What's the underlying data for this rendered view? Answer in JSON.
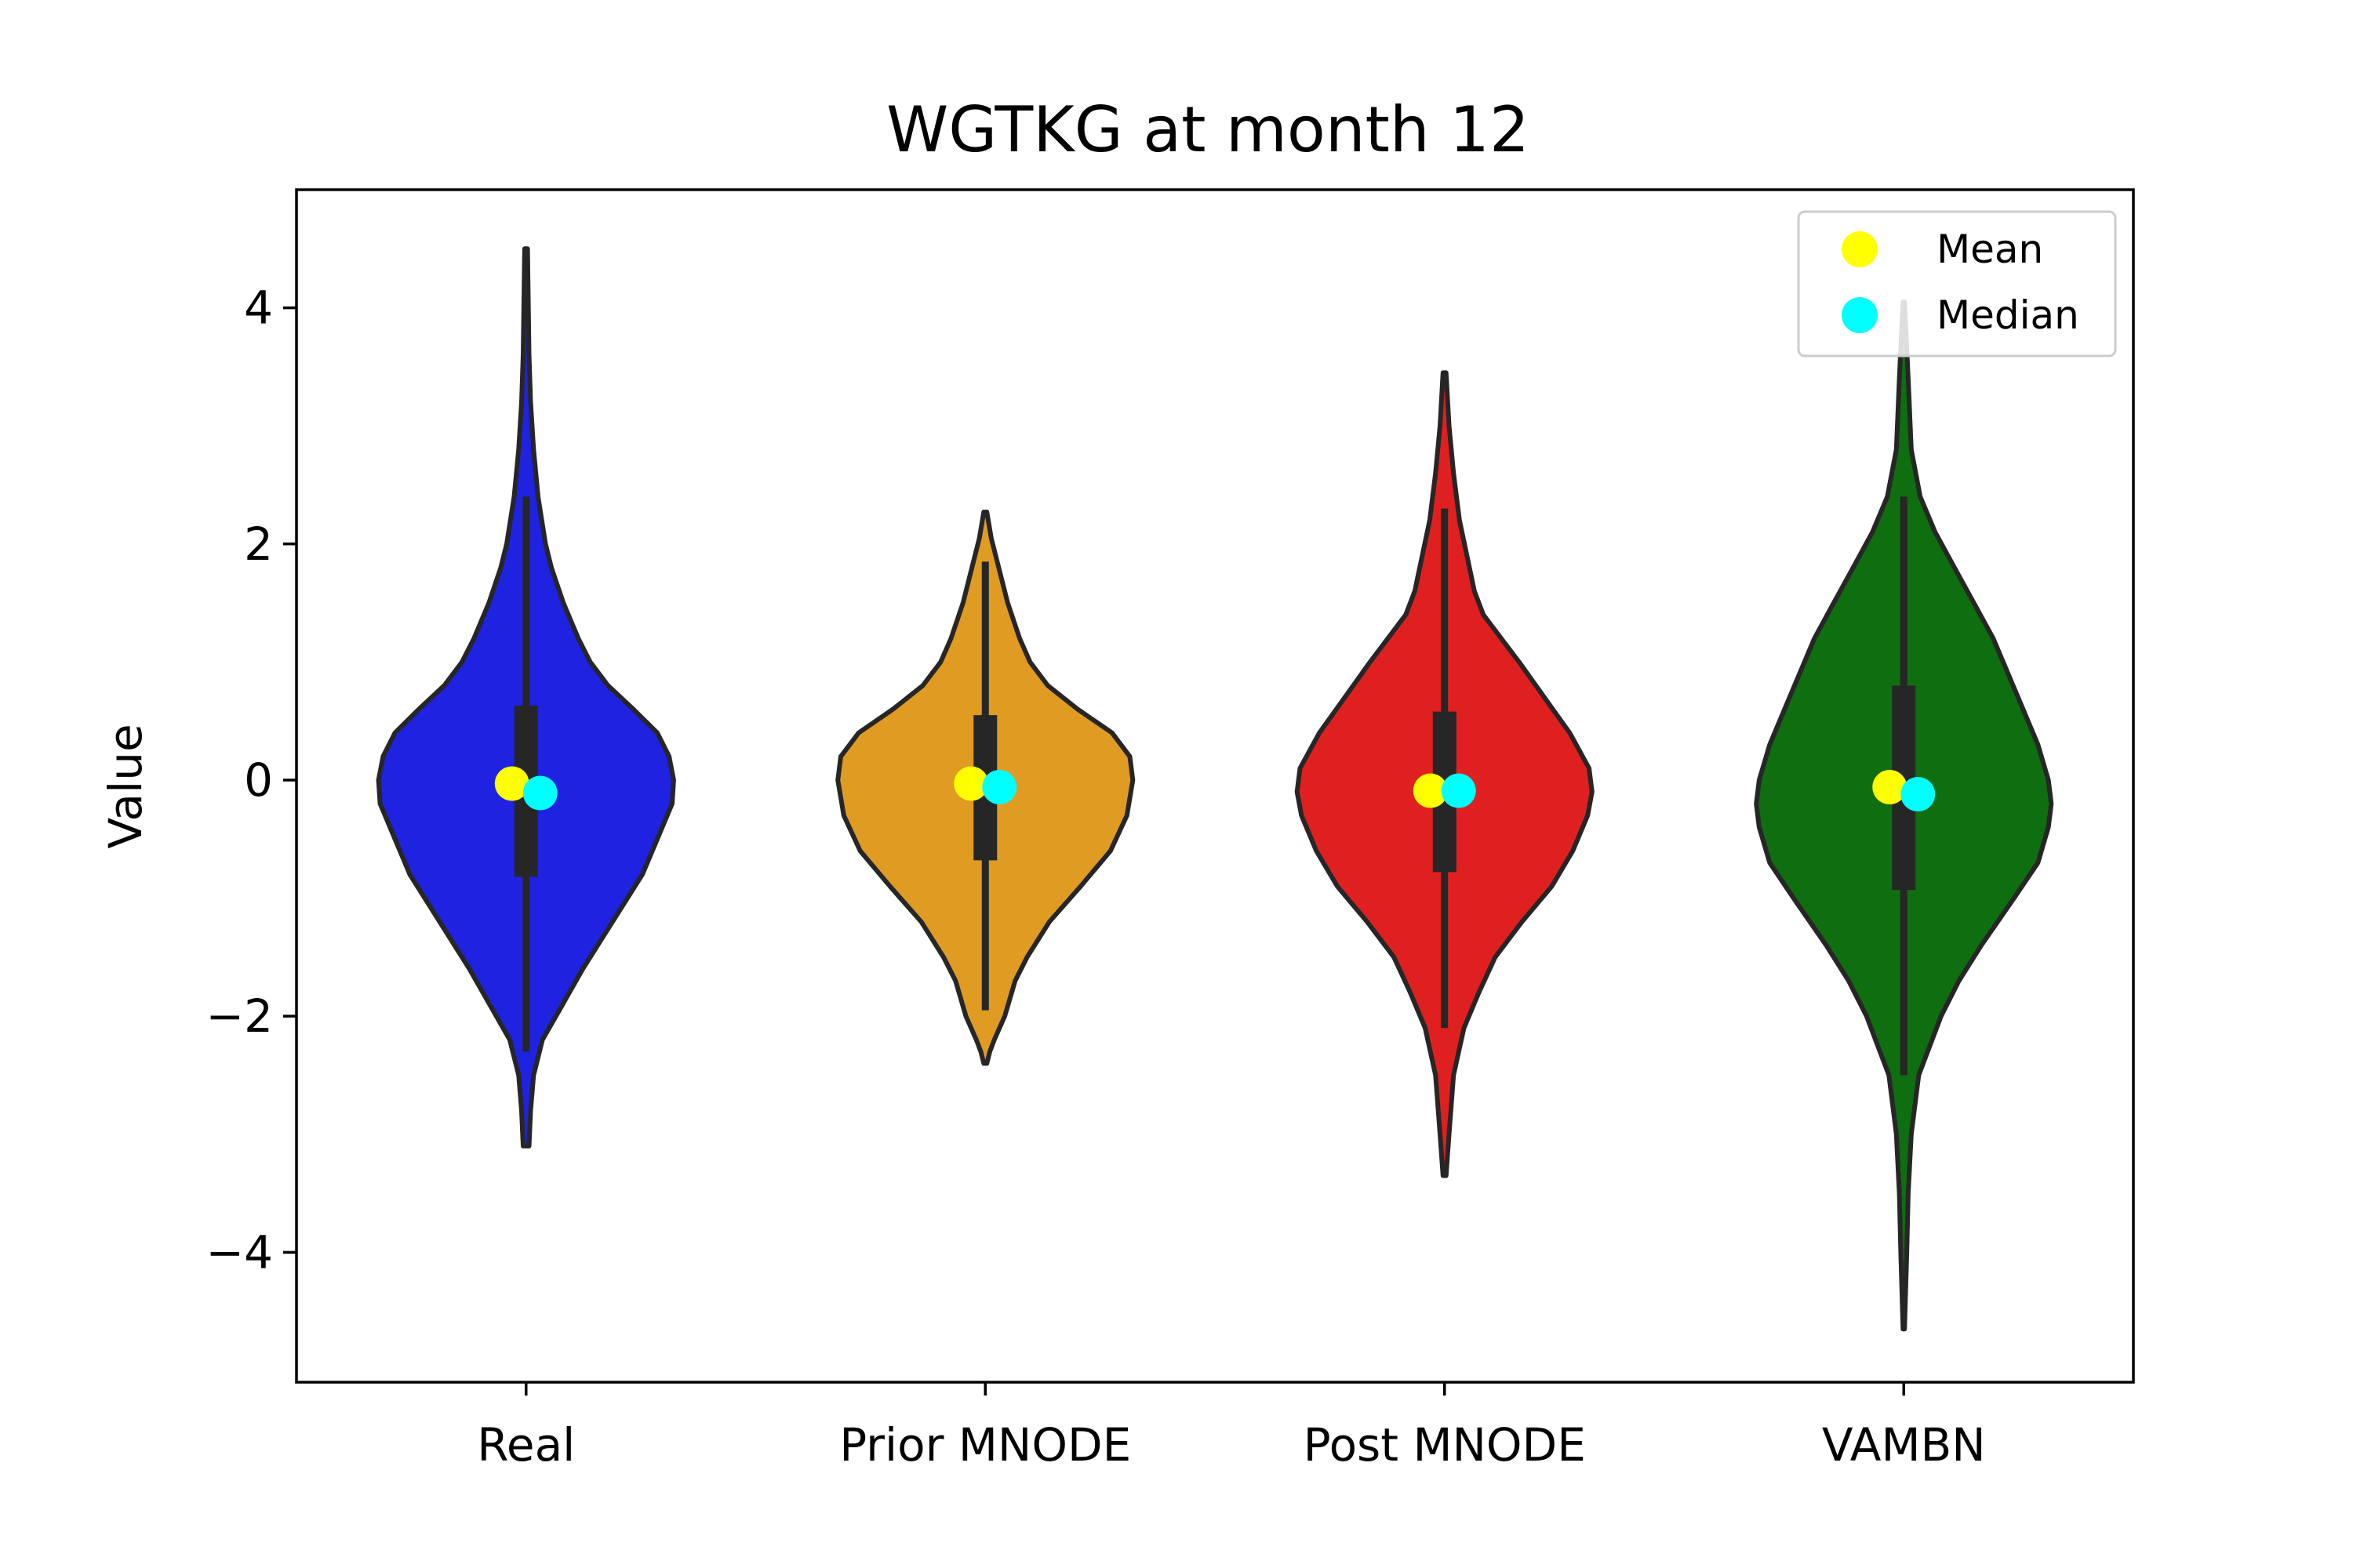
{
  "chart_data": {
    "type": "violin",
    "title": "WGTKG at month 12",
    "xlabel": "",
    "ylabel": "Value",
    "ylim": [
      -5.1,
      5.0
    ],
    "yticks": [
      4,
      2,
      0,
      -2,
      -4
    ],
    "ytick_labels": [
      "4",
      "2",
      "0",
      "−2",
      "−4"
    ],
    "legend": {
      "position": "top-right",
      "entries": [
        {
          "label": "Mean",
          "color": "#ffff00"
        },
        {
          "label": "Median",
          "color": "#00ffff"
        }
      ]
    },
    "series": [
      {
        "name": "Real",
        "color": "#1f22e0",
        "min": -3.1,
        "max": 4.5,
        "q1": -0.82,
        "q3": 0.63,
        "whisker_low": -2.3,
        "whisker_high": 2.4,
        "mean": -0.03,
        "median": -0.11,
        "density": [
          [
            -3.1,
            0.02
          ],
          [
            -2.8,
            0.03
          ],
          [
            -2.5,
            0.05
          ],
          [
            -2.2,
            0.11
          ],
          [
            -2.0,
            0.2
          ],
          [
            -1.6,
            0.38
          ],
          [
            -1.2,
            0.58
          ],
          [
            -0.8,
            0.78
          ],
          [
            -0.5,
            0.88
          ],
          [
            -0.2,
            0.98
          ],
          [
            0.0,
            0.99
          ],
          [
            0.2,
            0.96
          ],
          [
            0.4,
            0.88
          ],
          [
            0.6,
            0.72
          ],
          [
            0.8,
            0.55
          ],
          [
            1.0,
            0.43
          ],
          [
            1.2,
            0.35
          ],
          [
            1.5,
            0.25
          ],
          [
            1.8,
            0.17
          ],
          [
            2.0,
            0.13
          ],
          [
            2.4,
            0.08
          ],
          [
            2.8,
            0.05
          ],
          [
            3.2,
            0.03
          ],
          [
            3.6,
            0.02
          ],
          [
            4.5,
            0.01
          ]
        ]
      },
      {
        "name": "Prior MNODE",
        "color": "#e09c22",
        "min": -2.4,
        "max": 2.27,
        "q1": -0.68,
        "q3": 0.55,
        "whisker_low": -1.95,
        "whisker_high": 1.85,
        "mean": -0.03,
        "median": -0.06,
        "density": [
          [
            -2.4,
            0.01
          ],
          [
            -2.3,
            0.03
          ],
          [
            -2.2,
            0.06
          ],
          [
            -2.0,
            0.13
          ],
          [
            -1.7,
            0.2
          ],
          [
            -1.5,
            0.28
          ],
          [
            -1.2,
            0.43
          ],
          [
            -0.9,
            0.64
          ],
          [
            -0.6,
            0.84
          ],
          [
            -0.3,
            0.95
          ],
          [
            0.0,
            0.99
          ],
          [
            0.2,
            0.97
          ],
          [
            0.4,
            0.85
          ],
          [
            0.6,
            0.62
          ],
          [
            0.8,
            0.42
          ],
          [
            1.0,
            0.3
          ],
          [
            1.2,
            0.23
          ],
          [
            1.5,
            0.15
          ],
          [
            1.8,
            0.09
          ],
          [
            2.05,
            0.04
          ],
          [
            2.27,
            0.01
          ]
        ]
      },
      {
        "name": "Post MNODE",
        "color": "#e02020",
        "min": -3.35,
        "max": 3.45,
        "q1": -0.78,
        "q3": 0.58,
        "whisker_low": -2.1,
        "whisker_high": 2.3,
        "mean": -0.09,
        "median": -0.09,
        "density": [
          [
            -3.35,
            0.01
          ],
          [
            -3.0,
            0.03
          ],
          [
            -2.5,
            0.06
          ],
          [
            -2.1,
            0.13
          ],
          [
            -1.8,
            0.23
          ],
          [
            -1.5,
            0.34
          ],
          [
            -1.2,
            0.52
          ],
          [
            -0.9,
            0.72
          ],
          [
            -0.6,
            0.86
          ],
          [
            -0.3,
            0.96
          ],
          [
            -0.1,
            0.99
          ],
          [
            0.1,
            0.97
          ],
          [
            0.4,
            0.84
          ],
          [
            0.7,
            0.67
          ],
          [
            1.0,
            0.5
          ],
          [
            1.2,
            0.38
          ],
          [
            1.4,
            0.26
          ],
          [
            1.6,
            0.2
          ],
          [
            1.9,
            0.15
          ],
          [
            2.2,
            0.1
          ],
          [
            2.6,
            0.06
          ],
          [
            3.0,
            0.03
          ],
          [
            3.45,
            0.01
          ]
        ]
      },
      {
        "name": "VAMBN",
        "color": "#0f6e0f",
        "min": -4.65,
        "max": 4.05,
        "q1": -0.93,
        "q3": 0.8,
        "whisker_low": -2.5,
        "whisker_high": 2.4,
        "mean": -0.06,
        "median": -0.12,
        "density": [
          [
            -4.65,
            0.005
          ],
          [
            -4.0,
            0.02
          ],
          [
            -3.5,
            0.03
          ],
          [
            -3.0,
            0.05
          ],
          [
            -2.5,
            0.1
          ],
          [
            -2.0,
            0.25
          ],
          [
            -1.7,
            0.37
          ],
          [
            -1.4,
            0.52
          ],
          [
            -1.0,
            0.74
          ],
          [
            -0.7,
            0.9
          ],
          [
            -0.4,
            0.97
          ],
          [
            -0.2,
            0.99
          ],
          [
            0.0,
            0.97
          ],
          [
            0.3,
            0.9
          ],
          [
            0.6,
            0.8
          ],
          [
            0.9,
            0.7
          ],
          [
            1.2,
            0.6
          ],
          [
            1.5,
            0.47
          ],
          [
            1.8,
            0.34
          ],
          [
            2.1,
            0.21
          ],
          [
            2.4,
            0.11
          ],
          [
            2.8,
            0.05
          ],
          [
            3.4,
            0.03
          ],
          [
            4.05,
            0.005
          ]
        ]
      }
    ]
  }
}
